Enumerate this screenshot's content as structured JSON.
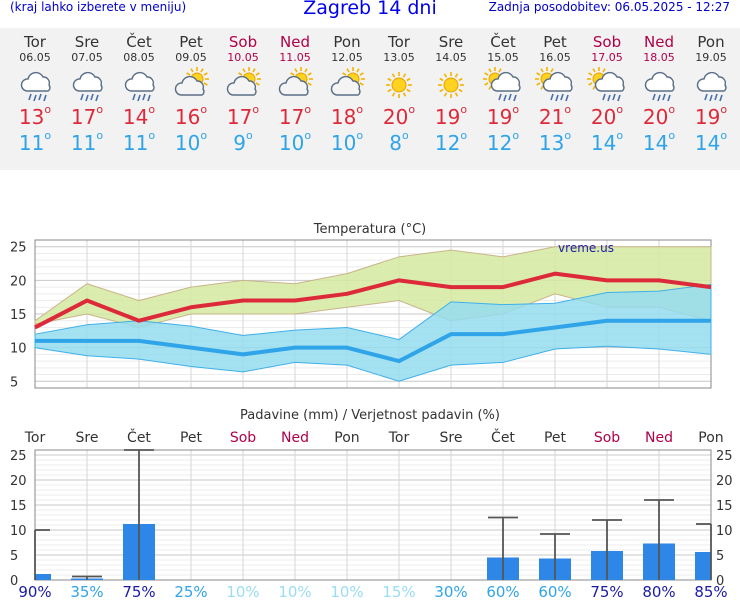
{
  "header": {
    "left_note": "(kraj lahko izberete v meniju)",
    "title": "Zagreb 14 dni",
    "updated": "Zadnja posodobitev: 06.05.2025 - 12:27"
  },
  "days": [
    {
      "name": "Tor",
      "date": "06.05",
      "weekend": false,
      "icon": "rain-cloud-icon",
      "tmax": 13,
      "tmin": 11
    },
    {
      "name": "Sre",
      "date": "07.05",
      "weekend": false,
      "icon": "rain-cloud-icon",
      "tmax": 17,
      "tmin": 11
    },
    {
      "name": "Čet",
      "date": "08.05",
      "weekend": false,
      "icon": "rain-cloud-icon",
      "tmax": 14,
      "tmin": 11
    },
    {
      "name": "Pet",
      "date": "09.05",
      "weekend": false,
      "icon": "partly-cloudy-icon",
      "tmax": 16,
      "tmin": 10
    },
    {
      "name": "Sob",
      "date": "10.05",
      "weekend": true,
      "icon": "partly-cloudy-icon",
      "tmax": 17,
      "tmin": 9
    },
    {
      "name": "Ned",
      "date": "11.05",
      "weekend": true,
      "icon": "partly-cloudy-icon",
      "tmax": 17,
      "tmin": 10
    },
    {
      "name": "Pon",
      "date": "12.05",
      "weekend": false,
      "icon": "partly-cloudy-icon",
      "tmax": 18,
      "tmin": 10
    },
    {
      "name": "Tor",
      "date": "13.05",
      "weekend": false,
      "icon": "sun-icon",
      "tmax": 20,
      "tmin": 8
    },
    {
      "name": "Sre",
      "date": "14.05",
      "weekend": false,
      "icon": "sun-icon",
      "tmax": 19,
      "tmin": 12
    },
    {
      "name": "Čet",
      "date": "15.05",
      "weekend": false,
      "icon": "sun-shower-icon",
      "tmax": 19,
      "tmin": 12
    },
    {
      "name": "Pet",
      "date": "16.05",
      "weekend": false,
      "icon": "sun-shower-icon",
      "tmax": 21,
      "tmin": 13
    },
    {
      "name": "Sob",
      "date": "17.05",
      "weekend": true,
      "icon": "sun-shower-icon",
      "tmax": 20,
      "tmin": 14
    },
    {
      "name": "Ned",
      "date": "18.05",
      "weekend": true,
      "icon": "rain-cloud-icon",
      "tmax": 20,
      "tmin": 14
    },
    {
      "name": "Pon",
      "date": "19.05",
      "weekend": false,
      "icon": "rain-cloud-icon",
      "tmax": 19,
      "tmin": 14
    }
  ],
  "colors": {
    "tmax": "#dd2a3b",
    "tmin": "#2fa4e8",
    "weekend": "#b0004a",
    "band_max": "#d5eaa0",
    "band_min": "#94dcef",
    "band_overlap": "#7fd07a",
    "precip_bar": "#2e86e6",
    "prob_high": "#1a1aa8",
    "prob_mid": "#2fa4e8",
    "prob_low": "#9adcf4"
  },
  "chart_data": [
    {
      "type": "line",
      "title": "Temperatura (°C)",
      "watermark": "vreme.us",
      "ylim": [
        4,
        26
      ],
      "yticks": [
        5,
        10,
        15,
        20,
        25
      ],
      "grid": true,
      "x": [
        "06.05",
        "07.05",
        "08.05",
        "09.05",
        "10.05",
        "11.05",
        "12.05",
        "13.05",
        "14.05",
        "15.05",
        "16.05",
        "17.05",
        "18.05",
        "19.05"
      ],
      "series": [
        {
          "values": [
            13,
            17,
            14,
            16,
            17,
            17,
            18,
            20,
            19,
            19,
            21,
            20,
            20,
            19
          ]
        },
        {
          "values": [
            11,
            11,
            11,
            10,
            9,
            10,
            10,
            8,
            12,
            12,
            13,
            14,
            14,
            14
          ]
        }
      ],
      "bands": [
        {
          "low": [
            13.5,
            15,
            13,
            15,
            15,
            15,
            16,
            17,
            14,
            15,
            18,
            16,
            16,
            14
          ],
          "high": [
            14,
            19.5,
            17,
            19,
            20,
            19.5,
            21,
            23.5,
            24.5,
            23.5,
            25,
            25,
            25,
            25
          ]
        },
        {
          "low": [
            10,
            8.8,
            8.3,
            7.2,
            6.4,
            7.8,
            7.4,
            5,
            7.4,
            7.8,
            9.8,
            10.2,
            9.8,
            9
          ],
          "high": [
            12,
            13.4,
            14,
            13.2,
            11.8,
            12.6,
            13,
            11.2,
            16.8,
            16.4,
            16.6,
            18.2,
            18.4,
            19.4
          ]
        }
      ]
    },
    {
      "type": "bar",
      "title": "Padavine (mm) / Verjetnost padavin (%)",
      "ylim": [
        0,
        26
      ],
      "yticks": [
        0,
        5,
        10,
        15,
        20,
        25
      ],
      "grid": true,
      "categories": [
        "Tor",
        "Sre",
        "Čet",
        "Pet",
        "Sob",
        "Ned",
        "Pon",
        "Tor",
        "Sre",
        "Čet",
        "Pet",
        "Sob",
        "Ned",
        "Pon"
      ],
      "values": [
        1.2,
        0.3,
        11.2,
        0,
        0,
        0,
        0,
        0,
        0,
        4.5,
        4.3,
        5.8,
        7.3,
        5.6
      ],
      "max_values": [
        10,
        0.7,
        26,
        0,
        0,
        0,
        0,
        0,
        0,
        12.5,
        9.2,
        12,
        16,
        11.2
      ],
      "probability": [
        "90%",
        "35%",
        "75%",
        "25%",
        "10%",
        "10%",
        "10%",
        "15%",
        "30%",
        "60%",
        "60%",
        "75%",
        "80%",
        "85%"
      ],
      "probability_values": [
        90,
        35,
        75,
        25,
        10,
        10,
        10,
        15,
        30,
        60,
        60,
        75,
        80,
        85
      ]
    }
  ]
}
